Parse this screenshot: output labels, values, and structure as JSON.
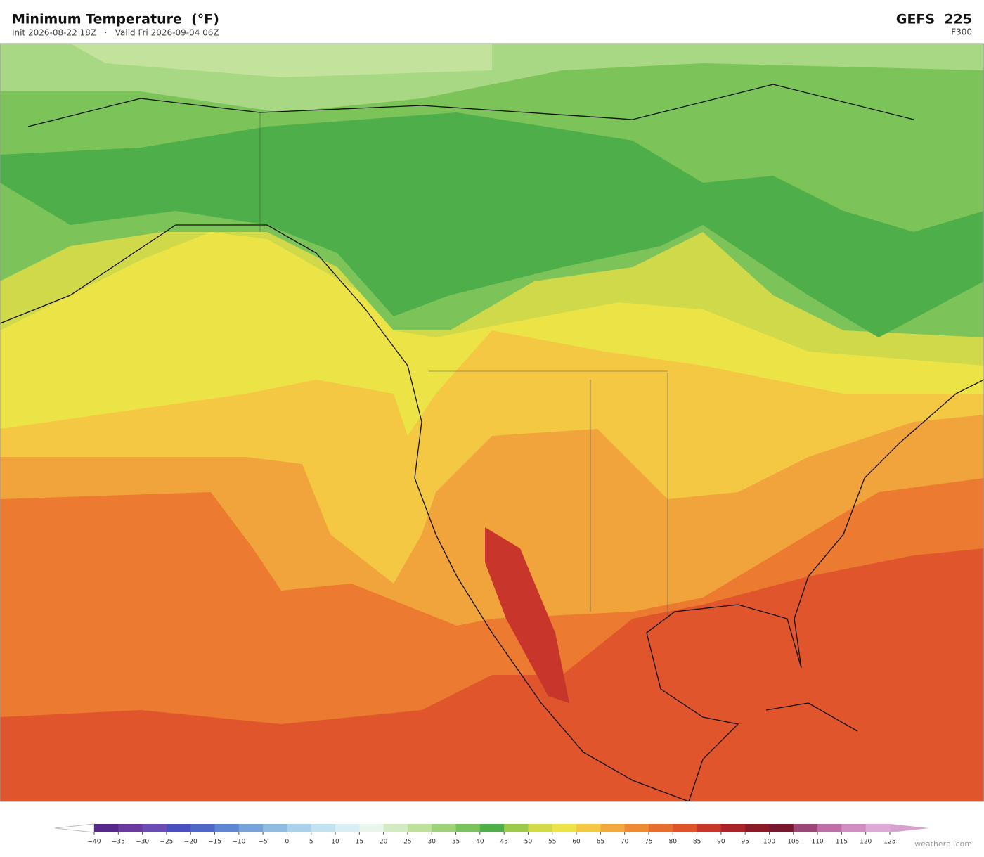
{
  "header": {
    "title": "Minimum Temperature  (°F)",
    "subtitle": "Init 2026-08-22 18Z   ·   Valid Fri 2026-09-04 06Z",
    "model": "GEFS  225",
    "forecast_hour": "F300"
  },
  "colorbar": {
    "ticks": [
      {
        "value": -40,
        "label": "−40"
      },
      {
        "value": -35,
        "label": "−35"
      },
      {
        "value": -30,
        "label": "−30"
      },
      {
        "value": -25,
        "label": "−25"
      },
      {
        "value": -20,
        "label": "−20"
      },
      {
        "value": -15,
        "label": "−15"
      },
      {
        "value": -10,
        "label": "−10"
      },
      {
        "value": -5,
        "label": "−5"
      },
      0,
      5,
      10,
      15,
      20,
      25,
      30,
      35,
      40,
      45,
      50,
      55,
      60,
      65,
      70,
      75,
      80,
      85,
      90,
      95,
      100,
      105,
      110,
      115,
      120,
      125
    ],
    "colors": [
      "#56288a",
      "#6a3a9e",
      "#6a4db3",
      "#4a4fbf",
      "#4f68c8",
      "#5f86d0",
      "#78a3d8",
      "#90bce2",
      "#a9d2ea",
      "#c2e2ef",
      "#d9eef2",
      "#e9f5ea",
      "#d3ebc3",
      "#bde09a",
      "#9dd27a",
      "#7bc35d",
      "#4dae4a",
      "#9dca4a",
      "#d2da48",
      "#ece446",
      "#f4c843",
      "#f2aa3c",
      "#ee8a32",
      "#e86c2c",
      "#e0532a",
      "#c8352b",
      "#ab2228",
      "#8c1a26",
      "#78182e",
      "#9c4676",
      "#bd6fa6",
      "#d08fc0",
      "#dcaad4"
    ],
    "under_color": "#ffffff",
    "over_color": "#d8a2d0"
  },
  "watermark": "weatherai.com"
}
